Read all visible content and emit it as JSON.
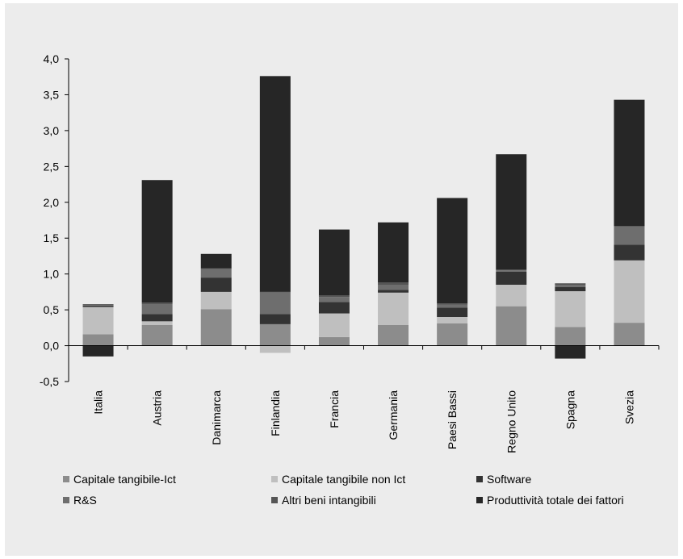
{
  "chart_data": {
    "type": "bar",
    "stacked": true,
    "categories": [
      "Italia",
      "Austria",
      "Danimarca",
      "Finlandia",
      "Francia",
      "Germania",
      "Paesi Bassi",
      "Regno Unito",
      "Spagna",
      "Svezia"
    ],
    "series": [
      {
        "name": "Capitale tangibile-Ict",
        "color": "#8c8c8c",
        "values": [
          0.16,
          0.29,
          0.51,
          0.3,
          0.12,
          0.29,
          0.31,
          0.55,
          0.26,
          0.32
        ]
      },
      {
        "name": "Capitale tangibile non Ict",
        "color": "#bfbfbf",
        "values": [
          0.38,
          0.05,
          0.24,
          -0.1,
          0.33,
          0.45,
          0.09,
          0.3,
          0.5,
          0.87
        ]
      },
      {
        "name": "Software",
        "color": "#333333",
        "values": [
          0.02,
          0.1,
          0.2,
          0.14,
          0.16,
          0.04,
          0.13,
          0.18,
          0.06,
          0.22
        ]
      },
      {
        "name": "R&S",
        "color": "#6e6e6e",
        "values": [
          0.01,
          0.14,
          0.12,
          0.3,
          0.07,
          0.07,
          0.04,
          0.02,
          0.03,
          0.25
        ]
      },
      {
        "name": "Altri beni intangibili",
        "color": "#555555",
        "values": [
          0.01,
          0.02,
          0.01,
          0.01,
          0.02,
          0.03,
          0.02,
          0.01,
          0.02,
          0.01
        ]
      },
      {
        "name": "Produttività totale dei fattori",
        "color": "#262626",
        "values": [
          -0.15,
          1.71,
          0.2,
          3.01,
          0.92,
          0.84,
          1.47,
          1.61,
          -0.18,
          1.76
        ]
      }
    ],
    "ylim": [
      -0.5,
      4.0
    ],
    "yticks": [
      -0.5,
      0.0,
      0.5,
      1.0,
      1.5,
      2.0,
      2.5,
      3.0,
      3.5,
      4.0
    ],
    "ytick_labels": [
      "-0,5",
      "0,0",
      "0,5",
      "1,0",
      "1,5",
      "2,0",
      "2,5",
      "3,0",
      "3,5",
      "4,0"
    ],
    "title": "",
    "xlabel": "",
    "ylabel": "",
    "grid": false,
    "legend_position": "bottom"
  }
}
